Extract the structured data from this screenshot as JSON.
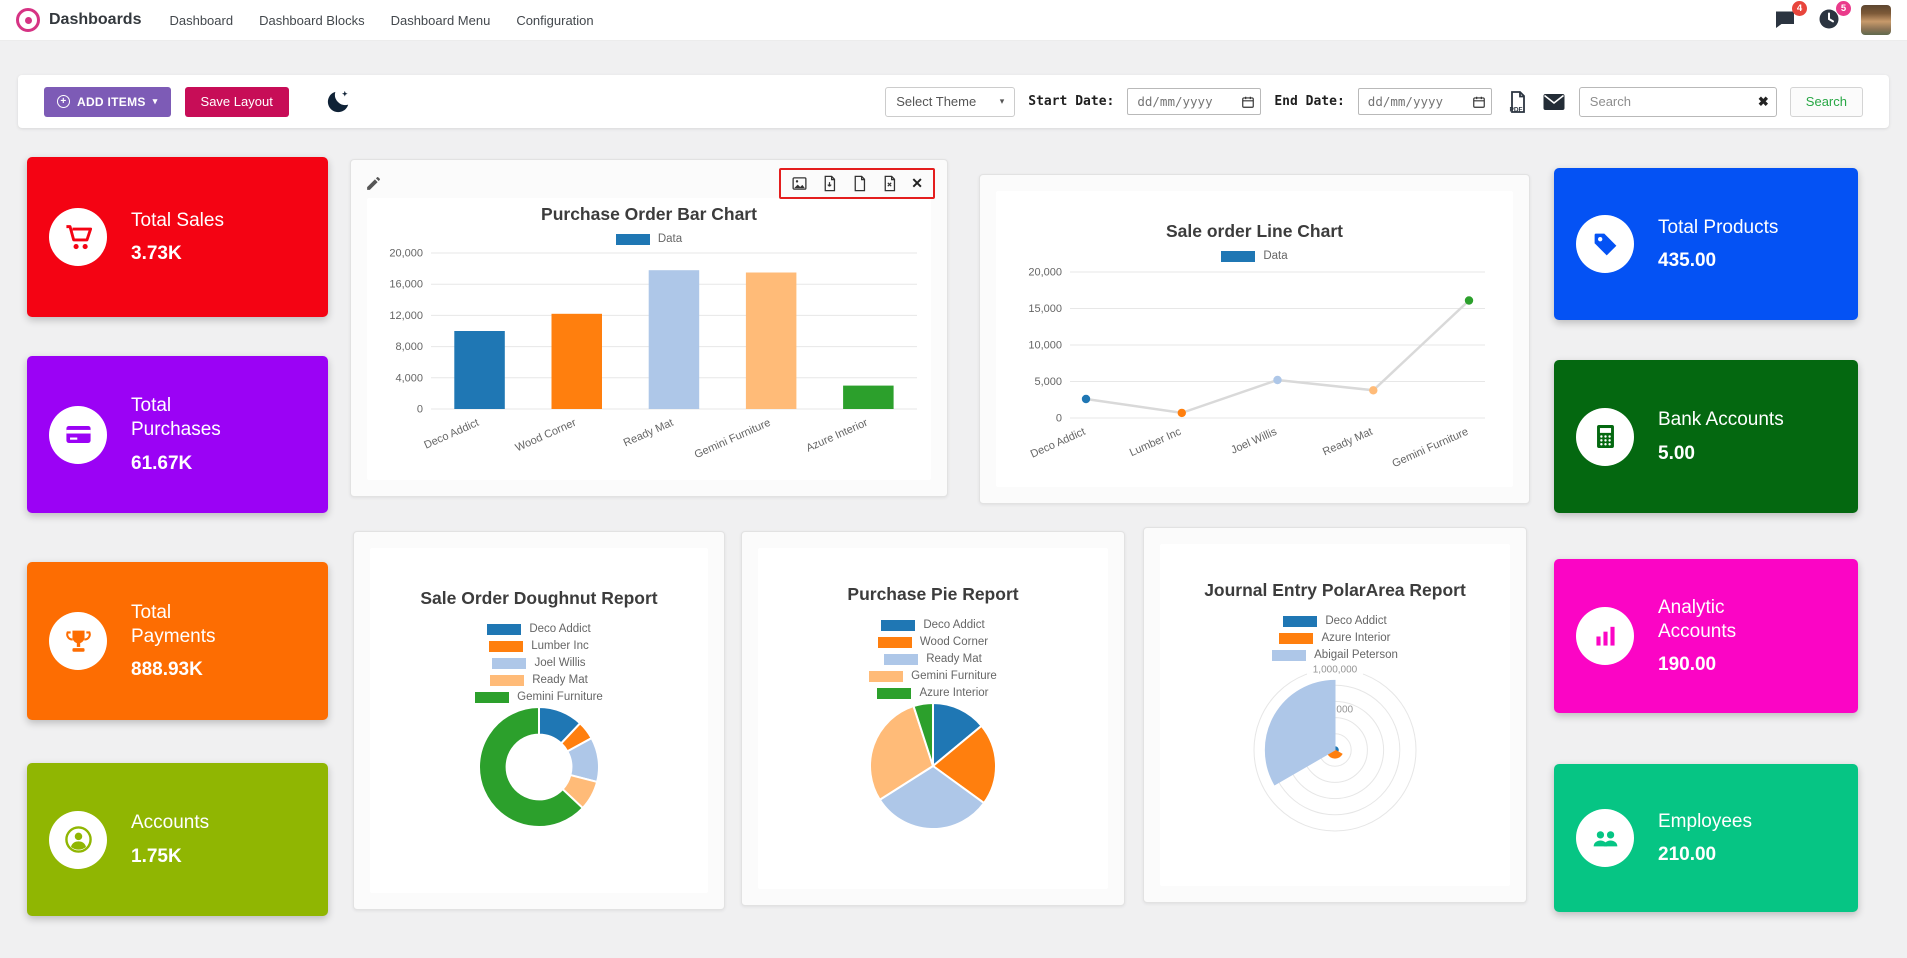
{
  "navbar": {
    "app_name": "Dashboards",
    "menu": [
      "Dashboard",
      "Dashboard Blocks",
      "Dashboard Menu",
      "Configuration"
    ],
    "badges": {
      "messages": "4",
      "activities": "5"
    }
  },
  "toolbar": {
    "add_items_label": "ADD ITEMS",
    "save_layout_label": "Save Layout",
    "select_theme_label": "Select Theme",
    "start_date_label": "Start Date:",
    "end_date_label": "End Date:",
    "date_placeholder": "dd/mm/yyyy",
    "search_placeholder": "Search",
    "search_button_label": "Search"
  },
  "annotation": {
    "export_highlight_color": "#e41e1e"
  },
  "kpi_tiles": {
    "left": [
      {
        "label": "Total Sales",
        "value": "3.73K",
        "bg": "#f40313",
        "icon": "cart-icon"
      },
      {
        "label": "Total Purchases",
        "value": "61.67K",
        "bg": "#9b02f5",
        "icon": "credit-card-icon"
      },
      {
        "label": "Total Payments",
        "value": "888.93K",
        "bg": "#fd6d02",
        "icon": "trophy-icon"
      },
      {
        "label": "Accounts",
        "value": "1.75K",
        "bg": "#90b602",
        "icon": "user-icon"
      }
    ],
    "right": [
      {
        "label": "Total Products",
        "value": "435.00",
        "bg": "#0452f4",
        "icon": "tag-icon"
      },
      {
        "label": "Bank Accounts",
        "value": "5.00",
        "bg": "#046810",
        "icon": "calculator-icon"
      },
      {
        "label": "Analytic Accounts",
        "value": "190.00",
        "bg": "#fb05c5",
        "icon": "bar-chart-icon"
      },
      {
        "label": "Employees",
        "value": "210.00",
        "bg": "#06c584",
        "icon": "users-icon"
      }
    ]
  },
  "chart_data": [
    {
      "type": "bar",
      "title": "Purchase Order Bar Chart",
      "legend_items": [
        {
          "label": "Data",
          "color": "#1f77b4"
        }
      ],
      "categories": [
        "Deco Addict",
        "Wood Corner",
        "Ready Mat",
        "Gemini Furniture",
        "Azure Interior"
      ],
      "values": [
        10000,
        12200,
        17800,
        17500,
        3000
      ],
      "colors": [
        "#1f77b4",
        "#ff7f0e",
        "#aec7e8",
        "#ffbb78",
        "#2ca02c"
      ],
      "yticks": [
        0,
        4000,
        8000,
        12000,
        16000,
        20000
      ],
      "ymax": 20000,
      "ylim": [
        0,
        20000
      ]
    },
    {
      "type": "line",
      "title": "Sale order Line Chart",
      "legend_items": [
        {
          "label": "Data",
          "color": "#1f77b4"
        }
      ],
      "categories": [
        "Deco Addict",
        "Lumber Inc",
        "Joel Willis",
        "Ready Mat",
        "Gemini Furniture"
      ],
      "values": [
        2600,
        700,
        5200,
        3800,
        16100
      ],
      "point_colors": [
        "#1f77b4",
        "#ff7f0e",
        "#aec7e8",
        "#ffbb78",
        "#2ca02c"
      ],
      "line_color": "#d9d9d9",
      "yticks": [
        0,
        5000,
        10000,
        15000,
        20000
      ],
      "ymax": 20000,
      "ylim": [
        0,
        20000
      ]
    },
    {
      "type": "doughnut",
      "title": "Sale Order Doughnut Report",
      "labels": [
        "Deco Addict",
        "Lumber Inc",
        "Joel Willis",
        "Ready Mat",
        "Gemini Furniture"
      ],
      "values": [
        12,
        5,
        12,
        8,
        63
      ],
      "colors": [
        "#1f77b4",
        "#ff7f0e",
        "#aec7e8",
        "#ffbb78",
        "#2ca02c"
      ]
    },
    {
      "type": "pie",
      "title": "Purchase Pie Report",
      "labels": [
        "Deco Addict",
        "Wood Corner",
        "Ready Mat",
        "Gemini Furniture",
        "Azure Interior"
      ],
      "values": [
        14,
        21,
        31,
        29,
        5
      ],
      "colors": [
        "#1f77b4",
        "#ff7f0e",
        "#aec7e8",
        "#ffbb78",
        "#2ca02c"
      ]
    },
    {
      "type": "polar",
      "title": "Journal Entry PolarArea Report",
      "labels": [
        "Deco Addict",
        "Azure Interior",
        "Abigail Peterson"
      ],
      "values": [
        40000,
        100000,
        860000
      ],
      "max": 1000000,
      "tick_labels": [
        "500,000",
        "1,000,000"
      ],
      "colors": [
        "#1f77b4",
        "#ff7f0e",
        "#aec7e8"
      ]
    }
  ]
}
